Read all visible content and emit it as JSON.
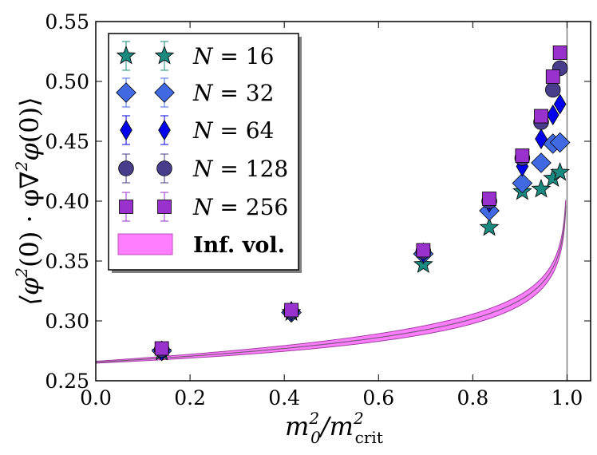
{
  "chart_data": {
    "type": "scatter",
    "xlabel": "m_0^2/m_crit^2",
    "ylabel": "<φ²(0) · φ∇²φ(0)>",
    "xlim": [
      0.0,
      1.05
    ],
    "ylim": [
      0.25,
      0.55
    ],
    "x_ticks": [
      "0.0",
      "0.2",
      "0.4",
      "0.6",
      "0.8",
      "1.0"
    ],
    "y_ticks": [
      "0.25",
      "0.30",
      "0.35",
      "0.40",
      "0.45",
      "0.50",
      "0.55"
    ],
    "series": [
      {
        "name": "N = 16",
        "marker": "star",
        "color": "#1a8a80",
        "points": [
          [
            0.14,
            0.274
          ],
          [
            0.415,
            0.307
          ],
          [
            0.695,
            0.347
          ],
          [
            0.835,
            0.378
          ],
          [
            0.905,
            0.408
          ],
          [
            0.945,
            0.41
          ],
          [
            0.97,
            0.419
          ],
          [
            0.985,
            0.424
          ]
        ]
      },
      {
        "name": "N = 32",
        "marker": "diamond",
        "color": "#4169e1",
        "points": [
          [
            0.14,
            0.275
          ],
          [
            0.415,
            0.307
          ],
          [
            0.695,
            0.356
          ],
          [
            0.835,
            0.392
          ],
          [
            0.905,
            0.415
          ],
          [
            0.945,
            0.432
          ],
          [
            0.97,
            0.448
          ],
          [
            0.985,
            0.449
          ]
        ]
      },
      {
        "name": "N = 64",
        "marker": "thin_diamond",
        "color": "#0000ee",
        "points": [
          [
            0.14,
            0.275
          ],
          [
            0.415,
            0.308
          ],
          [
            0.695,
            0.357
          ],
          [
            0.835,
            0.399
          ],
          [
            0.905,
            0.429
          ],
          [
            0.945,
            0.452
          ],
          [
            0.97,
            0.472
          ],
          [
            0.985,
            0.481
          ]
        ]
      },
      {
        "name": "N = 128",
        "marker": "circle",
        "color": "#483d8b",
        "points": [
          [
            0.14,
            0.276
          ],
          [
            0.415,
            0.308
          ],
          [
            0.695,
            0.358
          ],
          [
            0.835,
            0.4
          ],
          [
            0.905,
            0.436
          ],
          [
            0.945,
            0.466
          ],
          [
            0.97,
            0.493
          ],
          [
            0.985,
            0.511
          ]
        ]
      },
      {
        "name": "N = 256",
        "marker": "square",
        "color": "#9932cc",
        "points": [
          [
            0.14,
            0.277
          ],
          [
            0.415,
            0.309
          ],
          [
            0.695,
            0.359
          ],
          [
            0.835,
            0.402
          ],
          [
            0.905,
            0.438
          ],
          [
            0.945,
            0.471
          ],
          [
            0.97,
            0.504
          ],
          [
            0.985,
            0.524
          ]
        ]
      }
    ],
    "infinite_volume": {
      "name": "Inf. vol.",
      "color": "#ff66ff",
      "a": 0.2655,
      "b": -0.0225,
      "critical_x": 1.0
    },
    "legend": {
      "entries": [
        "N = 16",
        "N = 32",
        "N = 64",
        "N = 128",
        "N = 256",
        "Inf. vol."
      ],
      "placement": "top-left"
    }
  }
}
